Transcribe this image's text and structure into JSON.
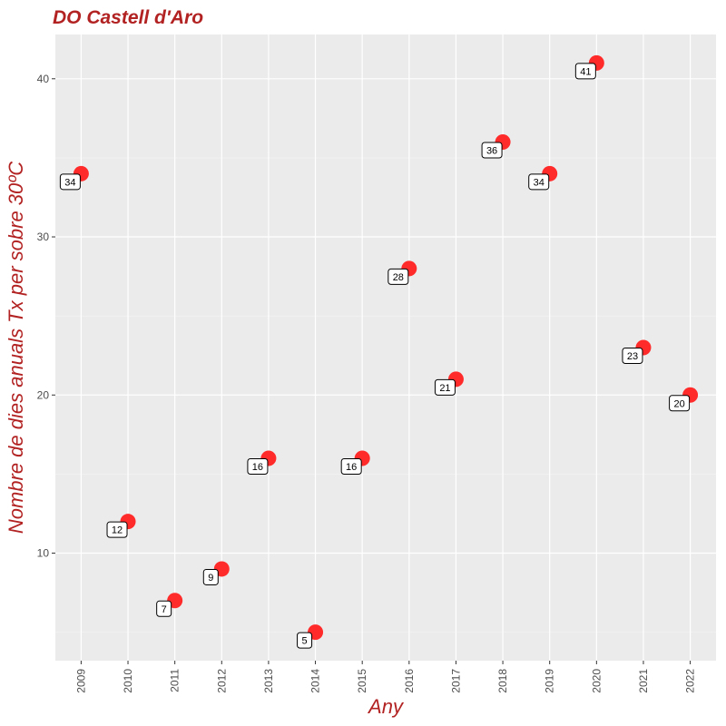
{
  "chart_data": {
    "type": "scatter",
    "title": "DO Castell d'Aro",
    "xlabel": "Any",
    "ylabel": "Nombre de dies anuals Tx per sobre 30ºC",
    "x": [
      2009,
      2010,
      2011,
      2012,
      2013,
      2014,
      2015,
      2016,
      2017,
      2018,
      2019,
      2020,
      2021,
      2022
    ],
    "y": [
      34,
      12,
      7,
      9,
      16,
      5,
      16,
      28,
      21,
      36,
      34,
      41,
      23,
      20
    ],
    "data_labels": [
      "34",
      "12",
      "7",
      "9",
      "16",
      "5",
      "16",
      "28",
      "21",
      "36",
      "34",
      "41",
      "23",
      "20"
    ],
    "x_tick_labels": [
      "2009",
      "2010",
      "2011",
      "2012",
      "2013",
      "2014",
      "2015",
      "2016",
      "2017",
      "2018",
      "2019",
      "2020",
      "2021",
      "2022"
    ],
    "y_ticks": [
      10,
      20,
      30,
      40
    ],
    "y_tick_labels": [
      "10",
      "20",
      "30",
      "40"
    ],
    "xlim": [
      2008.45,
      2022.55
    ],
    "ylim": [
      3.2,
      42.8
    ],
    "grid": true,
    "colors": {
      "title": "#b22222",
      "axis_title": "#b22222",
      "point": "#ff2b2b",
      "panel": "#ebebeb",
      "grid_major": "#ffffff",
      "grid_minor": "#f5f5f5"
    }
  }
}
